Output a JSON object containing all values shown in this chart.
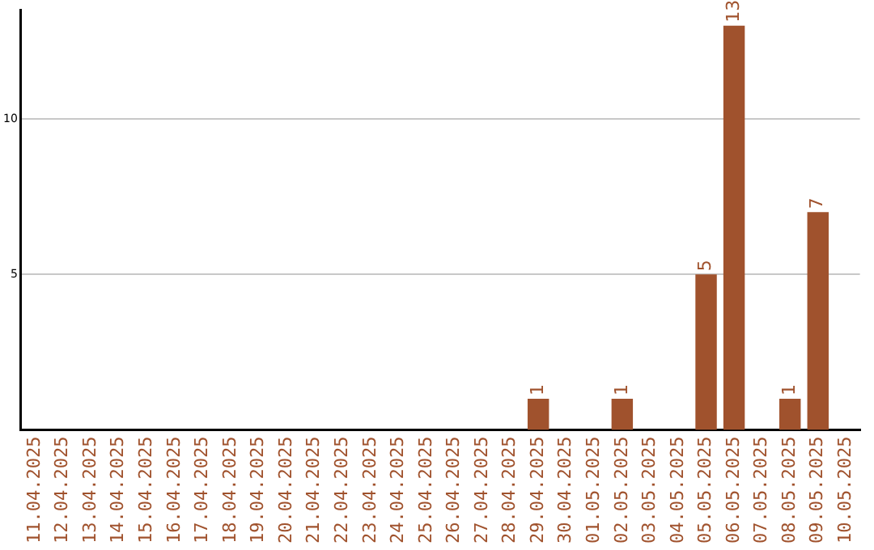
{
  "chart_data": {
    "type": "bar",
    "categories": [
      "11.04.2025",
      "12.04.2025",
      "13.04.2025",
      "14.04.2025",
      "15.04.2025",
      "16.04.2025",
      "17.04.2025",
      "18.04.2025",
      "19.04.2025",
      "20.04.2025",
      "21.04.2025",
      "22.04.2025",
      "23.04.2025",
      "24.04.2025",
      "25.04.2025",
      "26.04.2025",
      "27.04.2025",
      "28.04.2025",
      "29.04.2025",
      "30.04.2025",
      "01.05.2025",
      "02.05.2025",
      "03.05.2025",
      "04.05.2025",
      "05.05.2025",
      "06.05.2025",
      "07.05.2025",
      "08.05.2025",
      "09.05.2025",
      "10.05.2025"
    ],
    "values": [
      0,
      0,
      0,
      0,
      0,
      0,
      0,
      0,
      0,
      0,
      0,
      0,
      0,
      0,
      0,
      0,
      0,
      0,
      1,
      0,
      0,
      1,
      0,
      0,
      5,
      13,
      0,
      1,
      7,
      0
    ],
    "value_labels": [
      null,
      null,
      null,
      null,
      null,
      null,
      null,
      null,
      null,
      null,
      null,
      null,
      null,
      null,
      null,
      null,
      null,
      null,
      "1",
      null,
      null,
      "1",
      null,
      null,
      "5",
      "13",
      null,
      "1",
      "7",
      null
    ],
    "color": "#a0522d",
    "ylim": [
      0,
      13.5
    ],
    "yticks": [
      5,
      10
    ],
    "grid": "y",
    "legend": false
  }
}
